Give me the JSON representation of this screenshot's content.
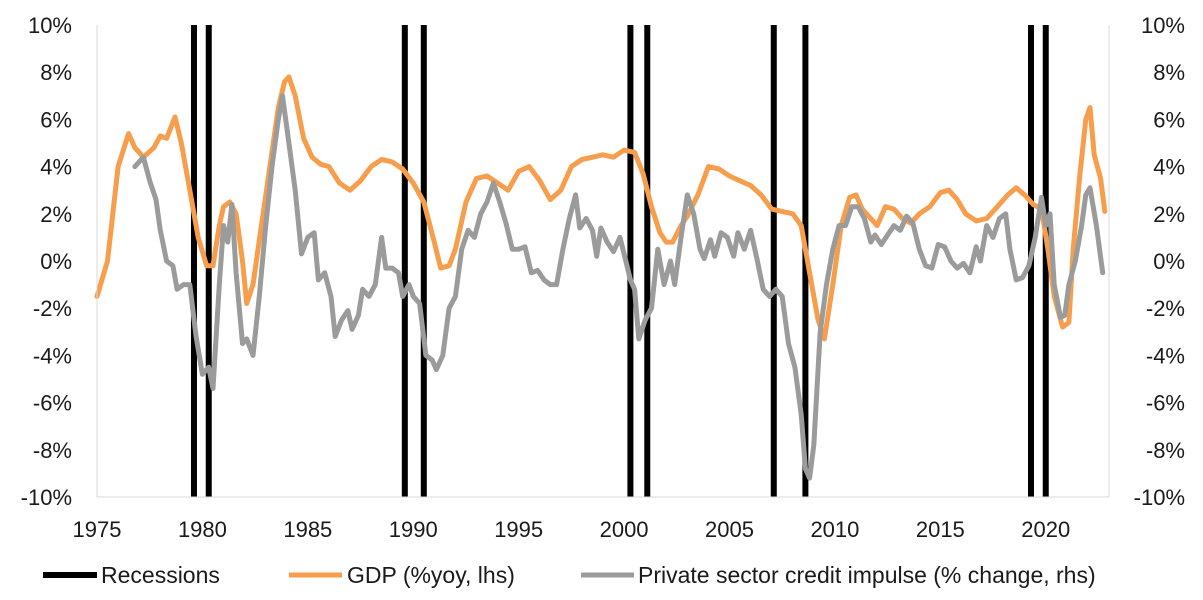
{
  "chart_data": {
    "type": "line",
    "x_axis": {
      "min": 1975,
      "max": 2023,
      "ticks": [
        1975,
        1980,
        1985,
        1990,
        1995,
        2000,
        2005,
        2010,
        2015,
        2020
      ],
      "tick_labels": [
        "1975",
        "1980",
        "1985",
        "1990",
        "1995",
        "2000",
        "2005",
        "2010",
        "2015",
        "2020"
      ]
    },
    "y_left": {
      "min": -10,
      "max": 10,
      "ticks": [
        -10,
        -8,
        -6,
        -4,
        -2,
        0,
        2,
        4,
        6,
        8,
        10
      ],
      "tick_labels": [
        "-10%",
        "-8%",
        "-6%",
        "-4%",
        "-2%",
        "0%",
        "2%",
        "4%",
        "6%",
        "8%",
        "10%"
      ]
    },
    "y_right": {
      "min": -10,
      "max": 10,
      "ticks": [
        -10,
        -8,
        -6,
        -4,
        -2,
        0,
        2,
        4,
        6,
        8,
        10
      ],
      "tick_labels": [
        "-10%",
        "-8%",
        "-6%",
        "-4%",
        "-2%",
        "0%",
        "2%",
        "4%",
        "6%",
        "8%",
        "10%"
      ]
    },
    "grid": false,
    "legend_position": "bottom",
    "recessions": {
      "name": "Recessions",
      "color": "#000000",
      "x": [
        1979.6,
        1980.3,
        1989.6,
        1990.5,
        2000.3,
        2001.1,
        2007.1,
        2008.6,
        2019.3,
        2020.0
      ]
    },
    "series": [
      {
        "name": "GDP (%yoy, lhs)",
        "color": "#f79e4d",
        "axis": "left",
        "points": [
          [
            1975.0,
            -1.5
          ],
          [
            1975.5,
            0.0
          ],
          [
            1976.0,
            4.0
          ],
          [
            1976.5,
            5.4
          ],
          [
            1976.8,
            4.8
          ],
          [
            1977.2,
            4.4
          ],
          [
            1977.7,
            4.8
          ],
          [
            1978.0,
            5.3
          ],
          [
            1978.3,
            5.2
          ],
          [
            1978.7,
            6.1
          ],
          [
            1979.0,
            5.0
          ],
          [
            1979.4,
            3.0
          ],
          [
            1979.8,
            1.0
          ],
          [
            1980.2,
            -0.2
          ],
          [
            1980.5,
            -0.2
          ],
          [
            1980.8,
            1.5
          ],
          [
            1981.0,
            2.3
          ],
          [
            1981.3,
            2.5
          ],
          [
            1981.6,
            2.0
          ],
          [
            1981.9,
            0.0
          ],
          [
            1982.1,
            -1.8
          ],
          [
            1982.4,
            -1.0
          ],
          [
            1982.8,
            1.5
          ],
          [
            1983.2,
            4.0
          ],
          [
            1983.6,
            6.5
          ],
          [
            1983.9,
            7.6
          ],
          [
            1984.1,
            7.8
          ],
          [
            1984.4,
            7.0
          ],
          [
            1984.8,
            5.2
          ],
          [
            1985.2,
            4.4
          ],
          [
            1985.6,
            4.1
          ],
          [
            1986.0,
            4.0
          ],
          [
            1986.5,
            3.3
          ],
          [
            1987.0,
            3.0
          ],
          [
            1987.5,
            3.4
          ],
          [
            1988.0,
            4.0
          ],
          [
            1988.5,
            4.3
          ],
          [
            1989.0,
            4.2
          ],
          [
            1989.5,
            3.9
          ],
          [
            1990.0,
            3.3
          ],
          [
            1990.5,
            2.5
          ],
          [
            1991.0,
            0.8
          ],
          [
            1991.3,
            -0.3
          ],
          [
            1991.7,
            -0.2
          ],
          [
            1992.0,
            0.5
          ],
          [
            1992.5,
            2.5
          ],
          [
            1993.0,
            3.5
          ],
          [
            1993.5,
            3.6
          ],
          [
            1994.0,
            3.3
          ],
          [
            1994.5,
            3.0
          ],
          [
            1995.0,
            3.8
          ],
          [
            1995.5,
            4.0
          ],
          [
            1996.0,
            3.4
          ],
          [
            1996.5,
            2.6
          ],
          [
            1997.0,
            3.0
          ],
          [
            1997.5,
            4.0
          ],
          [
            1998.0,
            4.3
          ],
          [
            1998.5,
            4.4
          ],
          [
            1999.0,
            4.5
          ],
          [
            1999.5,
            4.4
          ],
          [
            2000.0,
            4.7
          ],
          [
            2000.5,
            4.6
          ],
          [
            2000.9,
            3.7
          ],
          [
            2001.3,
            2.3
          ],
          [
            2001.7,
            1.2
          ],
          [
            2002.0,
            0.8
          ],
          [
            2002.3,
            0.8
          ],
          [
            2002.7,
            1.5
          ],
          [
            2003.0,
            1.9
          ],
          [
            2003.5,
            2.8
          ],
          [
            2004.0,
            4.0
          ],
          [
            2004.5,
            3.9
          ],
          [
            2005.0,
            3.6
          ],
          [
            2005.5,
            3.4
          ],
          [
            2006.0,
            3.2
          ],
          [
            2006.5,
            2.8
          ],
          [
            2007.0,
            2.2
          ],
          [
            2007.5,
            2.1
          ],
          [
            2008.0,
            2.0
          ],
          [
            2008.4,
            1.5
          ],
          [
            2008.8,
            -0.5
          ],
          [
            2009.2,
            -2.5
          ],
          [
            2009.5,
            -3.3
          ],
          [
            2009.9,
            -1.0
          ],
          [
            2010.3,
            1.5
          ],
          [
            2010.7,
            2.7
          ],
          [
            2011.0,
            2.8
          ],
          [
            2011.3,
            2.2
          ],
          [
            2011.7,
            1.8
          ],
          [
            2012.0,
            1.5
          ],
          [
            2012.4,
            2.3
          ],
          [
            2012.8,
            2.2
          ],
          [
            2013.2,
            1.8
          ],
          [
            2013.6,
            1.6
          ],
          [
            2014.0,
            2.0
          ],
          [
            2014.5,
            2.3
          ],
          [
            2015.0,
            2.9
          ],
          [
            2015.4,
            3.0
          ],
          [
            2015.8,
            2.6
          ],
          [
            2016.2,
            2.0
          ],
          [
            2016.7,
            1.7
          ],
          [
            2017.2,
            1.8
          ],
          [
            2017.7,
            2.3
          ],
          [
            2018.2,
            2.8
          ],
          [
            2018.6,
            3.1
          ],
          [
            2019.0,
            2.8
          ],
          [
            2019.4,
            2.4
          ],
          [
            2019.8,
            2.2
          ],
          [
            2020.1,
            0.5
          ],
          [
            2020.4,
            -1.5
          ],
          [
            2020.8,
            -2.8
          ],
          [
            2021.1,
            -2.6
          ],
          [
            2021.3,
            0.5
          ],
          [
            2021.6,
            3.5
          ],
          [
            2021.9,
            6.0
          ],
          [
            2022.1,
            6.5
          ],
          [
            2022.3,
            4.5
          ],
          [
            2022.6,
            3.5
          ],
          [
            2022.8,
            2.1
          ]
        ]
      },
      {
        "name": "Private sector credit impulse (% change, rhs)",
        "color": "#9b9b9b",
        "axis": "right",
        "points": [
          [
            1976.8,
            4.0
          ],
          [
            1977.2,
            4.4
          ],
          [
            1977.5,
            3.4
          ],
          [
            1977.8,
            2.6
          ],
          [
            1978.0,
            1.3
          ],
          [
            1978.3,
            0.0
          ],
          [
            1978.6,
            -0.2
          ],
          [
            1978.8,
            -1.2
          ],
          [
            1979.1,
            -1.0
          ],
          [
            1979.4,
            -1.0
          ],
          [
            1979.7,
            -3.2
          ],
          [
            1980.0,
            -4.8
          ],
          [
            1980.3,
            -4.5
          ],
          [
            1980.5,
            -5.4
          ],
          [
            1980.8,
            -1.0
          ],
          [
            1981.0,
            1.5
          ],
          [
            1981.2,
            0.8
          ],
          [
            1981.4,
            2.4
          ],
          [
            1981.6,
            -0.5
          ],
          [
            1981.9,
            -3.5
          ],
          [
            1982.1,
            -3.3
          ],
          [
            1982.4,
            -4.0
          ],
          [
            1982.7,
            -1.5
          ],
          [
            1983.0,
            1.5
          ],
          [
            1983.3,
            4.0
          ],
          [
            1983.6,
            6.0
          ],
          [
            1983.8,
            7.0
          ],
          [
            1984.1,
            5.0
          ],
          [
            1984.4,
            3.0
          ],
          [
            1984.7,
            0.3
          ],
          [
            1985.0,
            1.0
          ],
          [
            1985.3,
            1.2
          ],
          [
            1985.5,
            -0.8
          ],
          [
            1985.8,
            -0.5
          ],
          [
            1986.1,
            -1.5
          ],
          [
            1986.3,
            -3.2
          ],
          [
            1986.6,
            -2.5
          ],
          [
            1986.9,
            -2.1
          ],
          [
            1987.1,
            -2.9
          ],
          [
            1987.4,
            -2.3
          ],
          [
            1987.6,
            -1.2
          ],
          [
            1987.9,
            -1.5
          ],
          [
            1988.2,
            -1.0
          ],
          [
            1988.5,
            1.0
          ],
          [
            1988.7,
            -0.3
          ],
          [
            1989.0,
            -0.3
          ],
          [
            1989.3,
            -0.5
          ],
          [
            1989.5,
            -1.5
          ],
          [
            1989.8,
            -1.0
          ],
          [
            1990.0,
            -1.5
          ],
          [
            1990.3,
            -1.8
          ],
          [
            1990.6,
            -4.0
          ],
          [
            1990.9,
            -4.2
          ],
          [
            1991.1,
            -4.6
          ],
          [
            1991.4,
            -4.0
          ],
          [
            1991.7,
            -2.0
          ],
          [
            1992.0,
            -1.5
          ],
          [
            1992.3,
            0.5
          ],
          [
            1992.6,
            1.3
          ],
          [
            1992.9,
            1.0
          ],
          [
            1993.2,
            2.0
          ],
          [
            1993.5,
            2.5
          ],
          [
            1993.8,
            3.3
          ],
          [
            1994.1,
            2.5
          ],
          [
            1994.4,
            1.6
          ],
          [
            1994.7,
            0.5
          ],
          [
            1995.0,
            0.5
          ],
          [
            1995.3,
            0.6
          ],
          [
            1995.6,
            -0.5
          ],
          [
            1995.9,
            -0.4
          ],
          [
            1996.2,
            -0.8
          ],
          [
            1996.5,
            -1.0
          ],
          [
            1996.8,
            -1.0
          ],
          [
            1997.1,
            0.5
          ],
          [
            1997.4,
            1.8
          ],
          [
            1997.7,
            2.8
          ],
          [
            1997.9,
            1.4
          ],
          [
            1998.2,
            1.8
          ],
          [
            1998.5,
            1.3
          ],
          [
            1998.7,
            0.2
          ],
          [
            1998.9,
            1.4
          ],
          [
            1999.2,
            0.8
          ],
          [
            1999.5,
            0.4
          ],
          [
            1999.8,
            1.0
          ],
          [
            2000.0,
            0.3
          ],
          [
            2000.3,
            -0.8
          ],
          [
            2000.5,
            -1.2
          ],
          [
            2000.7,
            -3.3
          ],
          [
            2001.0,
            -2.5
          ],
          [
            2001.3,
            -2.0
          ],
          [
            2001.6,
            0.5
          ],
          [
            2001.9,
            -1.0
          ],
          [
            2002.2,
            0.0
          ],
          [
            2002.4,
            -1.0
          ],
          [
            2002.7,
            1.0
          ],
          [
            2003.0,
            2.8
          ],
          [
            2003.3,
            2.0
          ],
          [
            2003.6,
            0.5
          ],
          [
            2003.8,
            0.1
          ],
          [
            2004.1,
            0.9
          ],
          [
            2004.3,
            0.2
          ],
          [
            2004.6,
            1.2
          ],
          [
            2004.9,
            1.0
          ],
          [
            2005.2,
            0.2
          ],
          [
            2005.4,
            1.2
          ],
          [
            2005.7,
            0.5
          ],
          [
            2006.0,
            1.3
          ],
          [
            2006.3,
            0.1
          ],
          [
            2006.6,
            -1.2
          ],
          [
            2006.9,
            -1.5
          ],
          [
            2007.2,
            -1.2
          ],
          [
            2007.5,
            -1.5
          ],
          [
            2007.8,
            -3.5
          ],
          [
            2008.1,
            -4.5
          ],
          [
            2008.4,
            -6.5
          ],
          [
            2008.6,
            -8.8
          ],
          [
            2008.8,
            -9.2
          ],
          [
            2009.0,
            -7.8
          ],
          [
            2009.3,
            -3.0
          ],
          [
            2009.6,
            -1.0
          ],
          [
            2009.9,
            0.5
          ],
          [
            2010.2,
            1.5
          ],
          [
            2010.5,
            1.5
          ],
          [
            2010.8,
            2.3
          ],
          [
            2011.1,
            2.3
          ],
          [
            2011.4,
            1.8
          ],
          [
            2011.7,
            0.8
          ],
          [
            2011.9,
            1.1
          ],
          [
            2012.2,
            0.7
          ],
          [
            2012.5,
            1.1
          ],
          [
            2012.8,
            1.5
          ],
          [
            2013.1,
            1.3
          ],
          [
            2013.4,
            1.9
          ],
          [
            2013.7,
            1.6
          ],
          [
            2014.0,
            0.5
          ],
          [
            2014.3,
            -0.2
          ],
          [
            2014.6,
            -0.3
          ],
          [
            2014.9,
            0.7
          ],
          [
            2015.2,
            0.6
          ],
          [
            2015.5,
            0.0
          ],
          [
            2015.8,
            -0.3
          ],
          [
            2016.1,
            -0.1
          ],
          [
            2016.4,
            -0.5
          ],
          [
            2016.7,
            0.6
          ],
          [
            2016.9,
            0.0
          ],
          [
            2017.2,
            1.5
          ],
          [
            2017.5,
            1.0
          ],
          [
            2017.8,
            1.8
          ],
          [
            2018.1,
            2.0
          ],
          [
            2018.3,
            0.5
          ],
          [
            2018.6,
            -0.8
          ],
          [
            2018.9,
            -0.7
          ],
          [
            2019.2,
            -0.2
          ],
          [
            2019.5,
            1.0
          ],
          [
            2019.8,
            2.7
          ],
          [
            2020.0,
            1.5
          ],
          [
            2020.2,
            2.0
          ],
          [
            2020.4,
            -1.0
          ],
          [
            2020.7,
            -2.4
          ],
          [
            2020.9,
            -2.3
          ],
          [
            2021.1,
            -1.0
          ],
          [
            2021.4,
            0.0
          ],
          [
            2021.7,
            1.5
          ],
          [
            2021.9,
            2.8
          ],
          [
            2022.1,
            3.1
          ],
          [
            2022.4,
            1.5
          ],
          [
            2022.7,
            -0.5
          ]
        ]
      }
    ]
  },
  "legend": {
    "recessions_label": "Recessions",
    "gdp_label": "GDP (%yoy, lhs)",
    "credit_label": "Private sector credit impulse (% change, rhs)"
  }
}
